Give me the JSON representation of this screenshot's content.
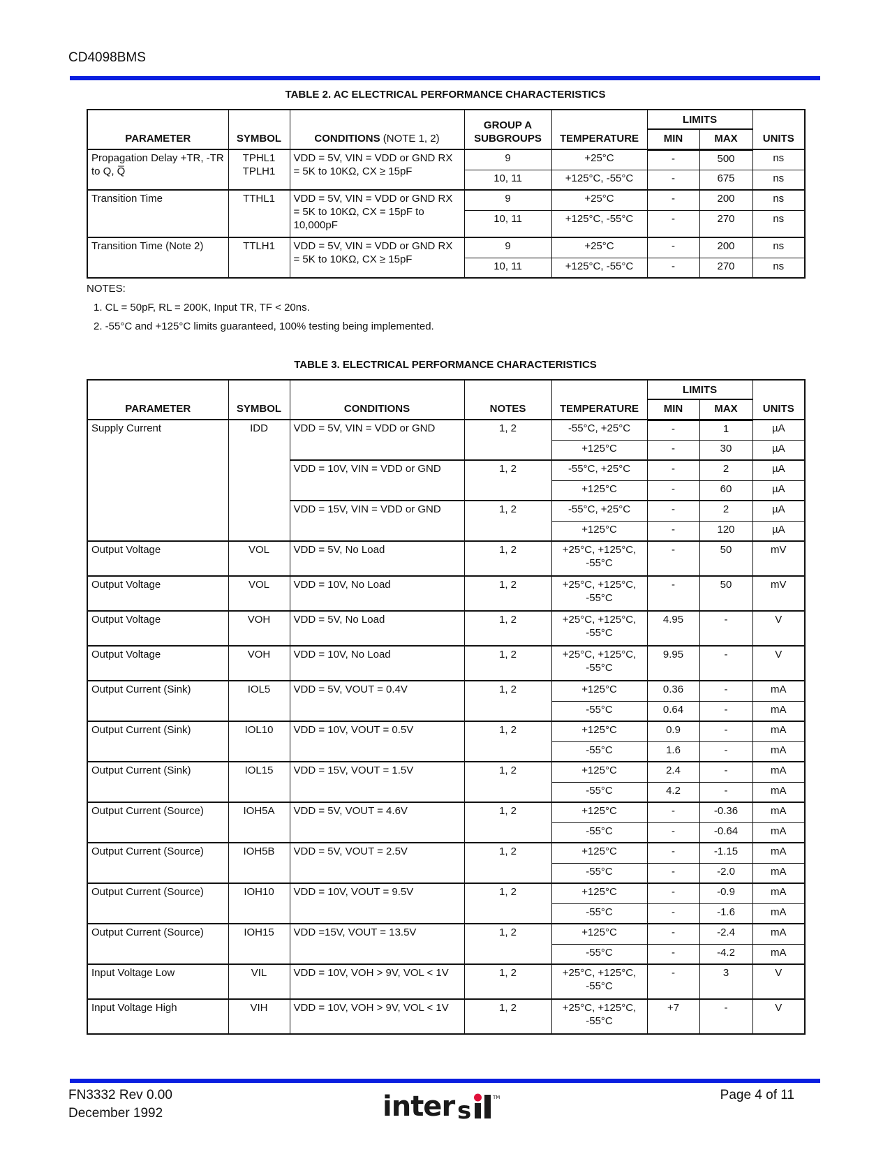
{
  "header": {
    "doc_id": "CD4098BMS"
  },
  "colors": {
    "rule": "#0a1ee0",
    "logo_dot": "#e0103a"
  },
  "table2": {
    "title": "TABLE  2.  AC ELECTRICAL PERFORMANCE CHARACTERISTICS",
    "headers": {
      "parameter": "PARAMETER",
      "symbol": "SYMBOL",
      "conditions": "CONDITIONS",
      "conditions_note": " (NOTE 1, 2)",
      "col4": "GROUP A SUBGROUPS",
      "temperature": "TEMPERATURE",
      "limits": "LIMITS",
      "min": "MIN",
      "max": "MAX",
      "units": "UNITS"
    },
    "groups": [
      {
        "param": "Propagation Delay +TR, -TR to Q, Q̅",
        "symbol": "TPHL1 TPLH1",
        "conds": [
          {
            "cond": "VDD = 5V, VIN = VDD or GND RX = 5K to 10KΩ, CX ≥ 15pF",
            "rows": [
              {
                "col4": "9",
                "temp": "+25°C",
                "min": "-",
                "max": "500",
                "units": "ns"
              },
              {
                "col4": "10, 11",
                "temp": "+125°C, -55°C",
                "min": "-",
                "max": "675",
                "units": "ns"
              }
            ]
          }
        ]
      },
      {
        "param": "Transition Time",
        "symbol": "TTHL1",
        "conds": [
          {
            "cond": "VDD = 5V, VIN = VDD or GND RX = 5K to 10KΩ, CX = 15pF to 10,000pF",
            "rows": [
              {
                "col4": "9",
                "temp": "+25°C",
                "min": "-",
                "max": "200",
                "units": "ns"
              },
              {
                "col4": "10, 11",
                "temp": "+125°C, -55°C",
                "min": "-",
                "max": "270",
                "units": "ns",
                "tall": true
              }
            ]
          }
        ]
      },
      {
        "param": "Transition Time (Note 2)",
        "symbol": "TTLH1",
        "conds": [
          {
            "cond": "VDD = 5V, VIN = VDD or GND RX = 5K to 10KΩ, CX ≥ 15pF",
            "rows": [
              {
                "col4": "9",
                "temp": "+25°C",
                "min": "-",
                "max": "200",
                "units": "ns"
              },
              {
                "col4": "10, 11",
                "temp": "+125°C, -55°C",
                "min": "-",
                "max": "270",
                "units": "ns"
              }
            ]
          }
        ]
      }
    ]
  },
  "notes": {
    "label": "NOTES:",
    "items": [
      "1.  CL = 50pF, RL = 200K, Input TR, TF < 20ns.",
      "2.  -55°C and +125°C limits guaranteed, 100% testing being implemented."
    ]
  },
  "table3": {
    "title": "TABLE  3.  ELECTRICAL PERFORMANCE CHARACTERISTICS",
    "headers": {
      "parameter": "PARAMETER",
      "symbol": "SYMBOL",
      "conditions": "CONDITIONS",
      "conditions_note": "",
      "col4": "NOTES",
      "temperature": "TEMPERATURE",
      "limits": "LIMITS",
      "min": "MIN",
      "max": "MAX",
      "units": "UNITS"
    },
    "groups": [
      {
        "param": "Supply Current",
        "symbol": "IDD",
        "conds": [
          {
            "cond": "VDD = 5V, VIN = VDD or GND",
            "notes": "1, 2",
            "rows": [
              {
                "temp": "-55°C, +25°C",
                "min": "-",
                "max": "1",
                "units": "µA"
              },
              {
                "temp": "+125°C",
                "min": "-",
                "max": "30",
                "units": "µA"
              }
            ]
          },
          {
            "cond": "VDD = 10V, VIN = VDD or GND",
            "notes": "1, 2",
            "rows": [
              {
                "temp": "-55°C, +25°C",
                "min": "-",
                "max": "2",
                "units": "µA"
              },
              {
                "temp": "+125°C",
                "min": "-",
                "max": "60",
                "units": "µA"
              }
            ]
          },
          {
            "cond": "VDD = 15V, VIN = VDD or GND",
            "notes": "1, 2",
            "rows": [
              {
                "temp": "-55°C, +25°C",
                "min": "-",
                "max": "2",
                "units": "µA"
              },
              {
                "temp": "+125°C",
                "min": "-",
                "max": "120",
                "units": "µA"
              }
            ]
          }
        ]
      },
      {
        "param": "Output Voltage",
        "symbol": "VOL",
        "conds": [
          {
            "cond": "VDD = 5V, No Load",
            "notes": "1, 2",
            "rows": [
              {
                "temp": "+25°C, +125°C, -55°C",
                "min": "-",
                "max": "50",
                "units": "mV",
                "tall": true
              }
            ]
          }
        ]
      },
      {
        "param": "Output Voltage",
        "symbol": "VOL",
        "conds": [
          {
            "cond": "VDD = 10V, No Load",
            "notes": "1, 2",
            "rows": [
              {
                "temp": "+25°C, +125°C, -55°C",
                "min": "-",
                "max": "50",
                "units": "mV",
                "tall": true
              }
            ]
          }
        ]
      },
      {
        "param": "Output Voltage",
        "symbol": "VOH",
        "conds": [
          {
            "cond": "VDD = 5V, No Load",
            "notes": "1, 2",
            "rows": [
              {
                "temp": "+25°C, +125°C, -55°C",
                "min": "4.95",
                "max": "-",
                "units": "V",
                "tall": true
              }
            ]
          }
        ]
      },
      {
        "param": "Output Voltage",
        "symbol": "VOH",
        "conds": [
          {
            "cond": "VDD = 10V, No Load",
            "notes": "1, 2",
            "rows": [
              {
                "temp": "+25°C, +125°C, -55°C",
                "min": "9.95",
                "max": "-",
                "units": "V",
                "tall": true
              }
            ]
          }
        ]
      },
      {
        "param": "Output Current (Sink)",
        "symbol": "IOL5",
        "conds": [
          {
            "cond": "VDD = 5V, VOUT = 0.4V",
            "notes": "1, 2",
            "rows": [
              {
                "temp": "+125°C",
                "min": "0.36",
                "max": "-",
                "units": "mA"
              },
              {
                "temp": "-55°C",
                "min": "0.64",
                "max": "-",
                "units": "mA"
              }
            ]
          }
        ]
      },
      {
        "param": "Output Current (Sink)",
        "symbol": "IOL10",
        "conds": [
          {
            "cond": "VDD = 10V, VOUT = 0.5V",
            "notes": "1, 2",
            "rows": [
              {
                "temp": "+125°C",
                "min": "0.9",
                "max": "-",
                "units": "mA"
              },
              {
                "temp": "-55°C",
                "min": "1.6",
                "max": "-",
                "units": "mA"
              }
            ]
          }
        ]
      },
      {
        "param": "Output Current (Sink)",
        "symbol": "IOL15",
        "conds": [
          {
            "cond": "VDD = 15V, VOUT = 1.5V",
            "notes": "1, 2",
            "rows": [
              {
                "temp": "+125°C",
                "min": "2.4",
                "max": "-",
                "units": "mA"
              },
              {
                "temp": "-55°C",
                "min": "4.2",
                "max": "-",
                "units": "mA"
              }
            ]
          }
        ]
      },
      {
        "param": "Output Current (Source)",
        "symbol": "IOH5A",
        "conds": [
          {
            "cond": "VDD = 5V, VOUT = 4.6V",
            "notes": "1, 2",
            "rows": [
              {
                "temp": "+125°C",
                "min": "-",
                "max": "-0.36",
                "units": "mA"
              },
              {
                "temp": "-55°C",
                "min": "-",
                "max": "-0.64",
                "units": "mA"
              }
            ]
          }
        ]
      },
      {
        "param": "Output Current (Source)",
        "symbol": "IOH5B",
        "conds": [
          {
            "cond": "VDD = 5V, VOUT = 2.5V",
            "notes": "1, 2",
            "rows": [
              {
                "temp": "+125°C",
                "min": "-",
                "max": "-1.15",
                "units": "mA"
              },
              {
                "temp": "-55°C",
                "min": "-",
                "max": "-2.0",
                "units": "mA"
              }
            ]
          }
        ]
      },
      {
        "param": "Output Current (Source)",
        "symbol": "IOH10",
        "conds": [
          {
            "cond": "VDD = 10V, VOUT = 9.5V",
            "notes": "1, 2",
            "rows": [
              {
                "temp": "+125°C",
                "min": "-",
                "max": "-0.9",
                "units": "mA"
              },
              {
                "temp": "-55°C",
                "min": "-",
                "max": "-1.6",
                "units": "mA"
              }
            ]
          }
        ]
      },
      {
        "param": "Output Current (Source)",
        "symbol": "IOH15",
        "conds": [
          {
            "cond": "VDD =15V, VOUT = 13.5V",
            "notes": "1, 2",
            "rows": [
              {
                "temp": "+125°C",
                "min": "-",
                "max": "-2.4",
                "units": "mA"
              },
              {
                "temp": "-55°C",
                "min": "-",
                "max": "-4.2",
                "units": "mA"
              }
            ]
          }
        ]
      },
      {
        "param": "Input Voltage Low",
        "symbol": "VIL",
        "conds": [
          {
            "cond": "VDD = 10V, VOH > 9V, VOL < 1V",
            "notes": "1, 2",
            "rows": [
              {
                "temp": "+25°C, +125°C, -55°C",
                "min": "-",
                "max": "3",
                "units": "V",
                "tall": true
              }
            ]
          }
        ]
      },
      {
        "param": "Input Voltage High",
        "symbol": "VIH",
        "conds": [
          {
            "cond": "VDD = 10V, VOH > 9V, VOL < 1V",
            "notes": "1, 2",
            "rows": [
              {
                "temp": "+25°C, +125°C, -55°C",
                "min": "+7",
                "max": "-",
                "units": "V",
                "tall": true
              }
            ]
          }
        ]
      }
    ]
  },
  "footer": {
    "doc_number": "FN3332  Rev 0.00",
    "date": "December 1992",
    "page": "Page 4 of 11",
    "logo_text": "intersil",
    "logo_tm": "™"
  }
}
